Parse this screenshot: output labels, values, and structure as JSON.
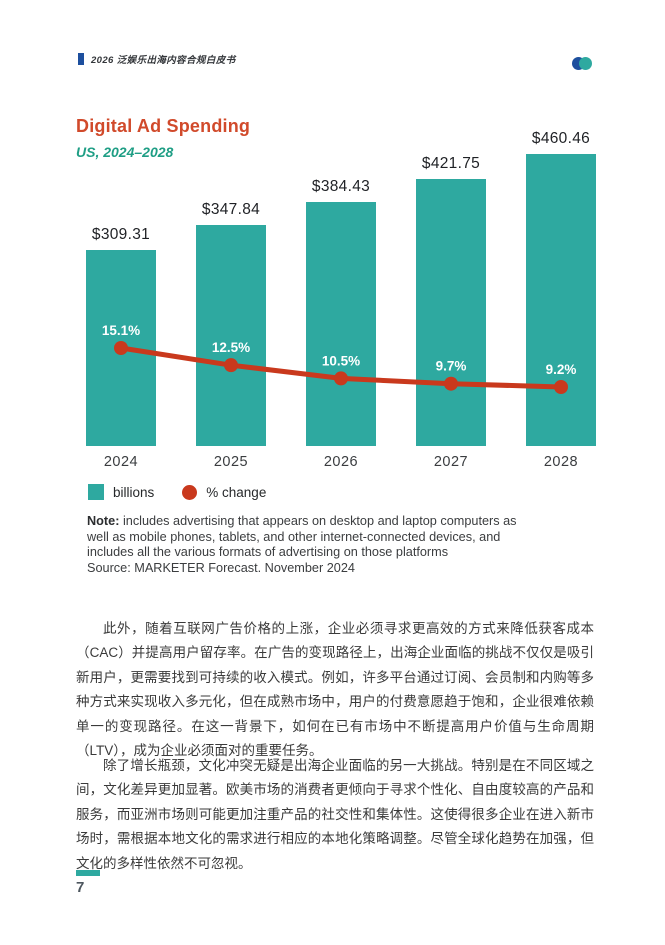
{
  "header": {
    "title": "2026 泛娱乐出海内容合规白皮书"
  },
  "logo": {
    "left_color": "#1d4f9e",
    "right_color": "#2ea9a0"
  },
  "chart": {
    "title": "Digital Ad Spending",
    "subtitle": "US, 2024–2028",
    "legend": {
      "bars_label": "billions",
      "line_label": "% change"
    }
  },
  "chart_data": {
    "type": "bar",
    "title": "Digital Ad Spending",
    "subtitle": "US, 2024–2028",
    "categories": [
      "2024",
      "2025",
      "2026",
      "2027",
      "2028"
    ],
    "series": [
      {
        "name": "billions",
        "type": "bar",
        "values": [
          309.31,
          347.84,
          384.43,
          421.75,
          460.46
        ],
        "labels": [
          "$309.31",
          "$347.84",
          "$384.43",
          "$421.75",
          "$460.46"
        ],
        "color": "#2ea9a0"
      },
      {
        "name": "% change",
        "type": "line",
        "values": [
          15.1,
          12.5,
          10.5,
          9.7,
          9.2
        ],
        "labels": [
          "15.1%",
          "12.5%",
          "10.5%",
          "9.7%",
          "9.2%"
        ],
        "color": "#c9391d"
      }
    ],
    "ylim": [
      0,
      460.46
    ],
    "grid": false,
    "legend_position": "bottom-left"
  },
  "note": {
    "label": "Note:",
    "text": "includes advertising that appears on desktop and laptop computers as\nwell as mobile phones, tablets, and other internet-connected devices, and\nincludes all the various formats of advertising on those platforms\nSource: MARKETER Forecast. November 2024"
  },
  "body": {
    "paragraph1": "此外，随着互联网广告价格的上涨，企业必须寻求更高效的方式来降低获客成本（CAC）并提高用户留存率。在广告的变现路径上，出海企业面临的挑战不仅仅是吸引新用户，更需要找到可持续的收入模式。例如，许多平台通过订阅、会员制和内购等多种方式来实现收入多元化，但在成熟市场中，用户的付费意愿趋于饱和，企业很难依赖单一的变现路径。在这一背景下，如何在已有市场中不断提高用户价值与生命周期（LTV），成为企业必须面对的重要任务。",
    "paragraph2": "除了增长瓶颈，文化冲突无疑是出海企业面临的另一大挑战。特别是在不同区域之间，文化差异更加显著。欧美市场的消费者更倾向于寻求个性化、自由度较高的产品和服务，而亚洲市场则可能更加注重产品的社交性和集体性。这使得很多企业在进入新市场时，需根据本地文化的需求进行相应的本地化策略调整。尽管全球化趋势在加强，但文化的多样性依然不可忽视。"
  },
  "footer": {
    "page_number": "7"
  }
}
